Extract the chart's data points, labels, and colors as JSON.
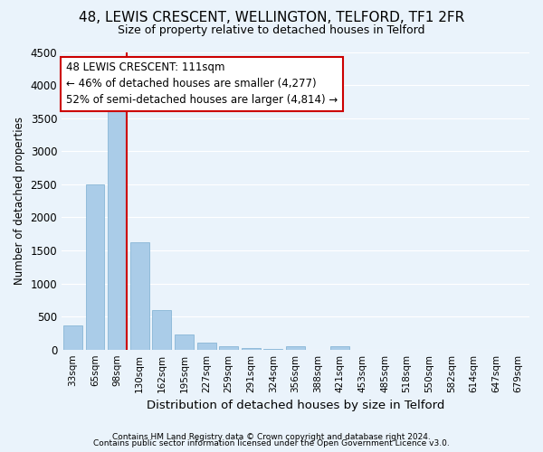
{
  "title": "48, LEWIS CRESCENT, WELLINGTON, TELFORD, TF1 2FR",
  "subtitle": "Size of property relative to detached houses in Telford",
  "xlabel": "Distribution of detached houses by size in Telford",
  "ylabel": "Number of detached properties",
  "property_label": "48 LEWIS CRESCENT: 111sqm",
  "annotation_line1": "← 46% of detached houses are smaller (4,277)",
  "annotation_line2": "52% of semi-detached houses are larger (4,814) →",
  "footer_line1": "Contains HM Land Registry data © Crown copyright and database right 2024.",
  "footer_line2": "Contains public sector information licensed under the Open Government Licence v3.0.",
  "categories": [
    "33sqm",
    "65sqm",
    "98sqm",
    "130sqm",
    "162sqm",
    "195sqm",
    "227sqm",
    "259sqm",
    "291sqm",
    "324sqm",
    "356sqm",
    "388sqm",
    "421sqm",
    "453sqm",
    "485sqm",
    "518sqm",
    "550sqm",
    "582sqm",
    "614sqm",
    "647sqm",
    "679sqm"
  ],
  "values": [
    370,
    2500,
    3750,
    1625,
    600,
    225,
    100,
    55,
    20,
    8,
    50,
    0,
    50,
    0,
    0,
    0,
    0,
    0,
    0,
    0,
    0
  ],
  "bar_color": "#aacce8",
  "bar_edge_color": "#7aaed0",
  "highlight_bar_index": 2,
  "highlight_line_color": "#cc0000",
  "ylim": [
    0,
    4500
  ],
  "yticks": [
    0,
    500,
    1000,
    1500,
    2000,
    2500,
    3000,
    3500,
    4000,
    4500
  ],
  "background_color": "#eaf3fb",
  "grid_color": "#ffffff",
  "annotation_box_facecolor": "#ffffff",
  "annotation_box_edgecolor": "#cc0000",
  "title_fontsize": 11,
  "subtitle_fontsize": 9
}
